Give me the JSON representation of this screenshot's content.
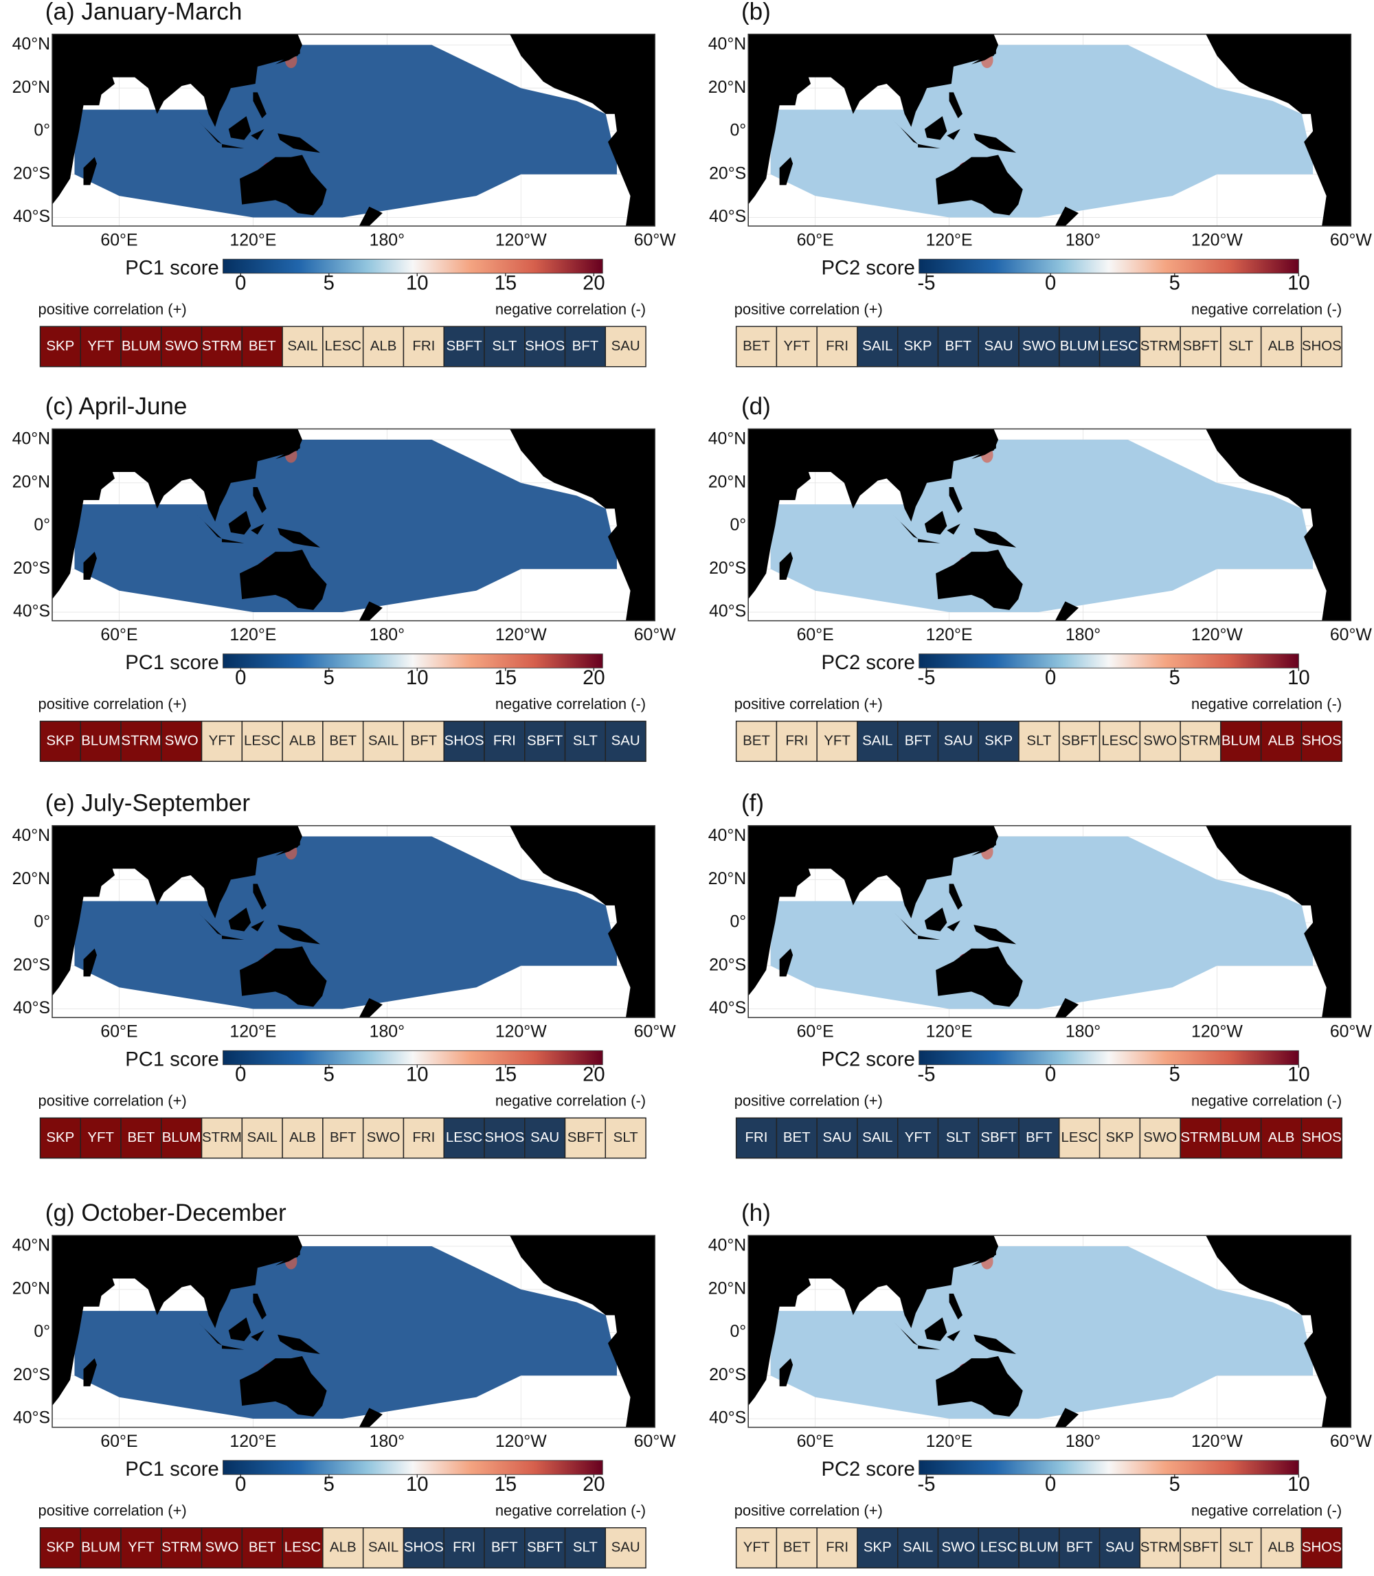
{
  "map": {
    "xlim": [
      30,
      300
    ],
    "ylim": [
      -44,
      45
    ],
    "lat_ticks": [
      {
        "value": 40,
        "label": "40°N"
      },
      {
        "value": 20,
        "label": "20°N"
      },
      {
        "value": 0,
        "label": "0°"
      },
      {
        "value": -20,
        "label": "20°S"
      },
      {
        "value": -40,
        "label": "40°S"
      }
    ],
    "lon_ticks": [
      {
        "value": 60,
        "label": "60°E"
      },
      {
        "value": 120,
        "label": "120°E"
      },
      {
        "value": 180,
        "label": "180°"
      },
      {
        "value": 240,
        "label": "120°W"
      },
      {
        "value": 300,
        "label": "60°W"
      }
    ]
  },
  "correlation": {
    "positive": "positive correlation (+)",
    "negative": "negative correlation (-)"
  },
  "columns": [
    {
      "colorbar": {
        "label": "PC1 score",
        "lim": [
          -1,
          20.5
        ],
        "ticks": [
          0,
          5,
          10,
          15,
          20
        ]
      },
      "ocean_color": "#2d5f98",
      "panels": [
        {
          "title": "(a) January-March",
          "species": [
            {
              "name": "SKP",
              "color": "#7d0a0a"
            },
            {
              "name": "YFT",
              "color": "#7d0a0a"
            },
            {
              "name": "BLUM",
              "color": "#7d0a0a"
            },
            {
              "name": "SWO",
              "color": "#7d0a0a"
            },
            {
              "name": "STRM",
              "color": "#7d0a0a"
            },
            {
              "name": "BET",
              "color": "#7d0a0a"
            },
            {
              "name": "SAIL",
              "color": "#f2dcbc"
            },
            {
              "name": "LESC",
              "color": "#f2dcbc"
            },
            {
              "name": "ALB",
              "color": "#f2dcbc"
            },
            {
              "name": "FRI",
              "color": "#f2dcbc"
            },
            {
              "name": "SBFT",
              "color": "#1f3b5c"
            },
            {
              "name": "SLT",
              "color": "#1f3b5c"
            },
            {
              "name": "SHOS",
              "color": "#1f3b5c"
            },
            {
              "name": "BFT",
              "color": "#1f3b5c"
            },
            {
              "name": "SAU",
              "color": "#f2dcbc"
            }
          ]
        },
        {
          "title": "(c) April-June",
          "species": [
            {
              "name": "SKP",
              "color": "#7d0a0a"
            },
            {
              "name": "BLUM",
              "color": "#7d0a0a"
            },
            {
              "name": "STRM",
              "color": "#7d0a0a"
            },
            {
              "name": "SWO",
              "color": "#7d0a0a"
            },
            {
              "name": "YFT",
              "color": "#f2dcbc"
            },
            {
              "name": "LESC",
              "color": "#f2dcbc"
            },
            {
              "name": "ALB",
              "color": "#f2dcbc"
            },
            {
              "name": "BET",
              "color": "#f2dcbc"
            },
            {
              "name": "SAIL",
              "color": "#f2dcbc"
            },
            {
              "name": "BFT",
              "color": "#f2dcbc"
            },
            {
              "name": "SHOS",
              "color": "#1f3b5c"
            },
            {
              "name": "FRI",
              "color": "#1f3b5c"
            },
            {
              "name": "SBFT",
              "color": "#1f3b5c"
            },
            {
              "name": "SLT",
              "color": "#1f3b5c"
            },
            {
              "name": "SAU",
              "color": "#1f3b5c"
            }
          ]
        },
        {
          "title": "(e) July-September",
          "species": [
            {
              "name": "SKP",
              "color": "#7d0a0a"
            },
            {
              "name": "YFT",
              "color": "#7d0a0a"
            },
            {
              "name": "BET",
              "color": "#7d0a0a"
            },
            {
              "name": "BLUM",
              "color": "#7d0a0a"
            },
            {
              "name": "STRM",
              "color": "#f2dcbc"
            },
            {
              "name": "SAIL",
              "color": "#f2dcbc"
            },
            {
              "name": "ALB",
              "color": "#f2dcbc"
            },
            {
              "name": "BFT",
              "color": "#f2dcbc"
            },
            {
              "name": "SWO",
              "color": "#f2dcbc"
            },
            {
              "name": "FRI",
              "color": "#f2dcbc"
            },
            {
              "name": "LESC",
              "color": "#1f3b5c"
            },
            {
              "name": "SHOS",
              "color": "#1f3b5c"
            },
            {
              "name": "SAU",
              "color": "#1f3b5c"
            },
            {
              "name": "SBFT",
              "color": "#f2dcbc"
            },
            {
              "name": "SLT",
              "color": "#f2dcbc"
            }
          ]
        },
        {
          "title": "(g) October-December",
          "species": [
            {
              "name": "SKP",
              "color": "#7d0a0a"
            },
            {
              "name": "BLUM",
              "color": "#7d0a0a"
            },
            {
              "name": "YFT",
              "color": "#7d0a0a"
            },
            {
              "name": "STRM",
              "color": "#7d0a0a"
            },
            {
              "name": "SWO",
              "color": "#7d0a0a"
            },
            {
              "name": "BET",
              "color": "#7d0a0a"
            },
            {
              "name": "LESC",
              "color": "#7d0a0a"
            },
            {
              "name": "ALB",
              "color": "#f2dcbc"
            },
            {
              "name": "SAIL",
              "color": "#f2dcbc"
            },
            {
              "name": "SHOS",
              "color": "#1f3b5c"
            },
            {
              "name": "FRI",
              "color": "#1f3b5c"
            },
            {
              "name": "BFT",
              "color": "#1f3b5c"
            },
            {
              "name": "SBFT",
              "color": "#1f3b5c"
            },
            {
              "name": "SLT",
              "color": "#1f3b5c"
            },
            {
              "name": "SAU",
              "color": "#f2dcbc"
            }
          ]
        }
      ]
    },
    {
      "colorbar": {
        "label": "PC2 score",
        "lim": [
          -5.3,
          10
        ],
        "ticks": [
          -5,
          0,
          5,
          10
        ]
      },
      "ocean_color": "#a9cde6",
      "panels": [
        {
          "title": "(b)",
          "species": [
            {
              "name": "BET",
              "color": "#f2dcbc"
            },
            {
              "name": "YFT",
              "color": "#f2dcbc"
            },
            {
              "name": "FRI",
              "color": "#f2dcbc"
            },
            {
              "name": "SAIL",
              "color": "#1f3b5c"
            },
            {
              "name": "SKP",
              "color": "#1f3b5c"
            },
            {
              "name": "BFT",
              "color": "#1f3b5c"
            },
            {
              "name": "SAU",
              "color": "#1f3b5c"
            },
            {
              "name": "SWO",
              "color": "#1f3b5c"
            },
            {
              "name": "BLUM",
              "color": "#1f3b5c"
            },
            {
              "name": "LESC",
              "color": "#1f3b5c"
            },
            {
              "name": "STRM",
              "color": "#f2dcbc"
            },
            {
              "name": "SBFT",
              "color": "#f2dcbc"
            },
            {
              "name": "SLT",
              "color": "#f2dcbc"
            },
            {
              "name": "ALB",
              "color": "#f2dcbc"
            },
            {
              "name": "SHOS",
              "color": "#f2dcbc"
            }
          ]
        },
        {
          "title": "(d)",
          "species": [
            {
              "name": "BET",
              "color": "#f2dcbc"
            },
            {
              "name": "FRI",
              "color": "#f2dcbc"
            },
            {
              "name": "YFT",
              "color": "#f2dcbc"
            },
            {
              "name": "SAIL",
              "color": "#1f3b5c"
            },
            {
              "name": "BFT",
              "color": "#1f3b5c"
            },
            {
              "name": "SAU",
              "color": "#1f3b5c"
            },
            {
              "name": "SKP",
              "color": "#1f3b5c"
            },
            {
              "name": "SLT",
              "color": "#f2dcbc"
            },
            {
              "name": "SBFT",
              "color": "#f2dcbc"
            },
            {
              "name": "LESC",
              "color": "#f2dcbc"
            },
            {
              "name": "SWO",
              "color": "#f2dcbc"
            },
            {
              "name": "STRM",
              "color": "#f2dcbc"
            },
            {
              "name": "BLUM",
              "color": "#7d0a0a"
            },
            {
              "name": "ALB",
              "color": "#7d0a0a"
            },
            {
              "name": "SHOS",
              "color": "#7d0a0a"
            }
          ]
        },
        {
          "title": "(f)",
          "species": [
            {
              "name": "FRI",
              "color": "#1f3b5c"
            },
            {
              "name": "BET",
              "color": "#1f3b5c"
            },
            {
              "name": "SAU",
              "color": "#1f3b5c"
            },
            {
              "name": "SAIL",
              "color": "#1f3b5c"
            },
            {
              "name": "YFT",
              "color": "#1f3b5c"
            },
            {
              "name": "SLT",
              "color": "#1f3b5c"
            },
            {
              "name": "SBFT",
              "color": "#1f3b5c"
            },
            {
              "name": "BFT",
              "color": "#1f3b5c"
            },
            {
              "name": "LESC",
              "color": "#f2dcbc"
            },
            {
              "name": "SKP",
              "color": "#f2dcbc"
            },
            {
              "name": "SWO",
              "color": "#f2dcbc"
            },
            {
              "name": "STRM",
              "color": "#7d0a0a"
            },
            {
              "name": "BLUM",
              "color": "#7d0a0a"
            },
            {
              "name": "ALB",
              "color": "#7d0a0a"
            },
            {
              "name": "SHOS",
              "color": "#7d0a0a"
            }
          ]
        },
        {
          "title": "(h)",
          "species": [
            {
              "name": "YFT",
              "color": "#f2dcbc"
            },
            {
              "name": "BET",
              "color": "#f2dcbc"
            },
            {
              "name": "FRI",
              "color": "#f2dcbc"
            },
            {
              "name": "SKP",
              "color": "#1f3b5c"
            },
            {
              "name": "SAIL",
              "color": "#1f3b5c"
            },
            {
              "name": "SWO",
              "color": "#1f3b5c"
            },
            {
              "name": "LESC",
              "color": "#1f3b5c"
            },
            {
              "name": "BLUM",
              "color": "#1f3b5c"
            },
            {
              "name": "BFT",
              "color": "#1f3b5c"
            },
            {
              "name": "SAU",
              "color": "#1f3b5c"
            },
            {
              "name": "STRM",
              "color": "#f2dcbc"
            },
            {
              "name": "SBFT",
              "color": "#f2dcbc"
            },
            {
              "name": "SLT",
              "color": "#f2dcbc"
            },
            {
              "name": "ALB",
              "color": "#f2dcbc"
            },
            {
              "name": "SHOS",
              "color": "#7d0a0a"
            }
          ]
        }
      ]
    }
  ]
}
